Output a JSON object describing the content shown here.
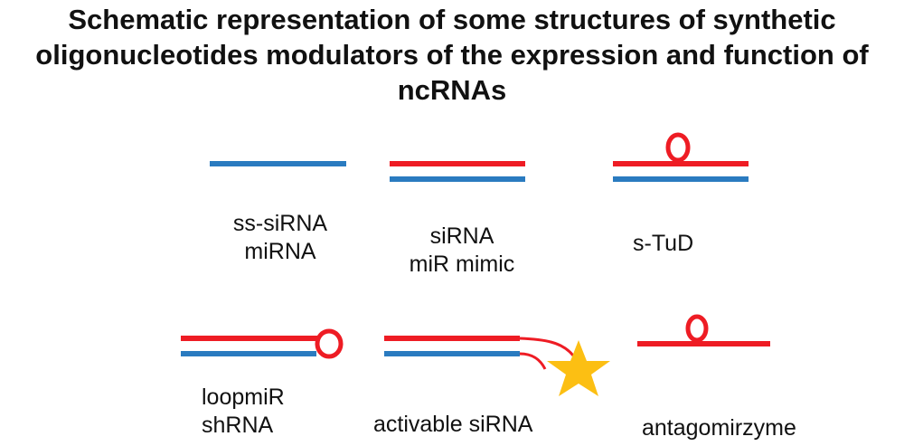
{
  "title": {
    "line1": "Schematic representation of some structures of synthetic",
    "line2": "oligonucleotides modulators of the expression and function of",
    "line3": "ncRNAs"
  },
  "colors": {
    "red_strand": "#ee1c24",
    "blue_strand": "#2a7bc0",
    "star": "#fcbf13"
  },
  "structures": {
    "ss_sirna": {
      "line1": "ss-siRNA",
      "line2": "miRNA"
    },
    "sirna": {
      "line1": "siRNA",
      "line2": "miR mimic"
    },
    "s_tud": {
      "line1": "s-TuD"
    },
    "loopmir": {
      "line1": "loopmiR",
      "line2": "shRNA"
    },
    "activable_sirna": {
      "line1": "activable siRNA"
    },
    "antagomirzyme": {
      "line1": "antagomirzyme"
    }
  }
}
